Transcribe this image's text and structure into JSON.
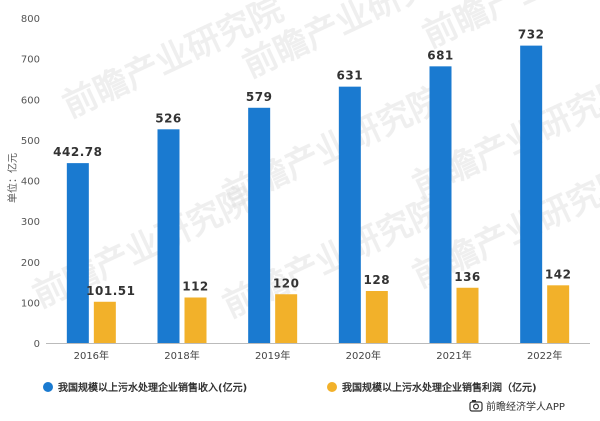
{
  "chart_data": {
    "type": "bar",
    "categories": [
      "2016年",
      "2018年",
      "2019年",
      "2020年",
      "2021年",
      "2022年"
    ],
    "series": [
      {
        "name": "我国规模以上污水处理企业销售收入(亿元)",
        "values": [
          442.78,
          526,
          579,
          631,
          681,
          732
        ],
        "labels": [
          "442.78",
          "526",
          "579",
          "631",
          "681",
          "732"
        ],
        "color": "#1a7ad0"
      },
      {
        "name": "我国规模以上污水处理企业销售利润（亿元)",
        "values": [
          101.51,
          112,
          120,
          128,
          136,
          142
        ],
        "labels": [
          "101.51",
          "112",
          "120",
          "128",
          "136",
          "142"
        ],
        "color": "#f2b12a"
      }
    ],
    "ylabel": "单位：亿元",
    "ylim": [
      0,
      800
    ],
    "yticks": [
      0,
      100,
      200,
      300,
      400,
      500,
      600,
      700,
      800
    ],
    "grid": false,
    "legend_position": "bottom"
  },
  "watermark_text": "前瞻产业研究院",
  "source": {
    "icon": "camera-icon",
    "text": "前瞻经济学人APP"
  }
}
